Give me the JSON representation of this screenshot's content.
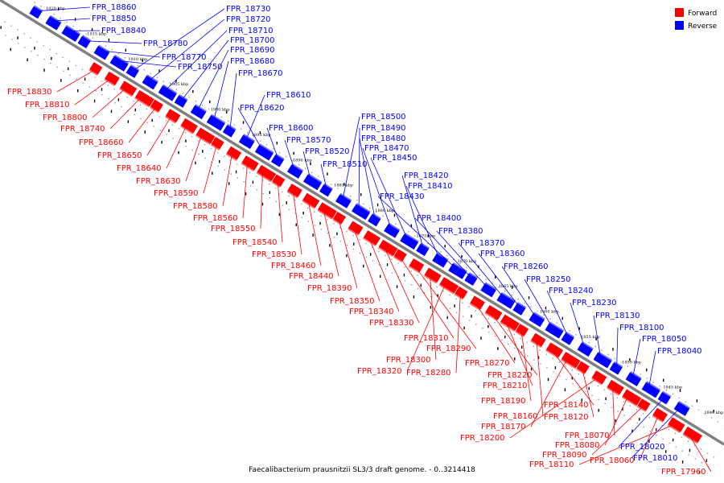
{
  "caption": "Faecalibacterium prausnitzii SL3/3 draft genome. - 0..3214418",
  "legend": [
    {
      "label": "Forward",
      "color": "#ff0000"
    },
    {
      "label": "Reverse",
      "color": "#0000ff"
    }
  ],
  "colors": {
    "forward": "#ff0000",
    "reverse": "#0000ff",
    "axis": "#808080"
  },
  "axis_ticks": [
    "1920 kbp",
    "1915 kbp",
    "1910 kbp",
    "1905 kbp",
    "1900 kbp",
    "1895 kbp",
    "1890 kbp",
    "1885 kbp",
    "1880 kbp",
    "1875 kbp",
    "1870 kbp",
    "1865 kbp",
    "1860 kbp",
    "1855 kbp",
    "1850 kbp",
    "1845 kbp",
    "1840 kbp"
  ],
  "reverse_genes": [
    "FPR_18860",
    "FPR_18850",
    "FPR_18840",
    "FPR_18780",
    "FPR_18770",
    "FPR_18750",
    "FPR_18730",
    "FPR_18720",
    "FPR_18710",
    "FPR_18700",
    "FPR_18690",
    "FPR_18680",
    "FPR_18670",
    "FPR_18610",
    "FPR_18620",
    "FPR_18600",
    "FPR_18570",
    "FPR_18520",
    "FPR_18510",
    "FPR_18500",
    "FPR_18490",
    "FPR_18480",
    "FPR_18470",
    "FPR_18450",
    "FPR_18420",
    "FPR_18410",
    "FPR_18430",
    "FPR_18400",
    "FPR_18380",
    "FPR_18370",
    "FPR_18360",
    "FPR_18260",
    "FPR_18250",
    "FPR_18240",
    "FPR_18230",
    "FPR_18130",
    "FPR_18100",
    "FPR_18050",
    "FPR_18040",
    "FPR_18020",
    "FPR_18010"
  ],
  "forward_genes": [
    "FPR_18830",
    "FPR_18810",
    "FPR_18800",
    "FPR_18740",
    "FPR_18660",
    "FPR_18650",
    "FPR_18640",
    "FPR_18630",
    "FPR_18590",
    "FPR_18580",
    "FPR_18560",
    "FPR_18550",
    "FPR_18540",
    "FPR_18530",
    "FPR_18460",
    "FPR_18440",
    "FPR_18390",
    "FPR_18350",
    "FPR_18340",
    "FPR_18330",
    "FPR_18310",
    "FPR_18290",
    "FPR_18300",
    "FPR_18320",
    "FPR_18280",
    "FPR_18270",
    "FPR_18220",
    "FPR_18210",
    "FPR_18190",
    "FPR_18160",
    "FPR_18140",
    "FPR_18170",
    "FPR_18120",
    "FPR_18200",
    "FPR_18070",
    "FPR_18080",
    "FPR_18090",
    "FPR_18060",
    "FPR_18110",
    "FPR_17960"
  ]
}
